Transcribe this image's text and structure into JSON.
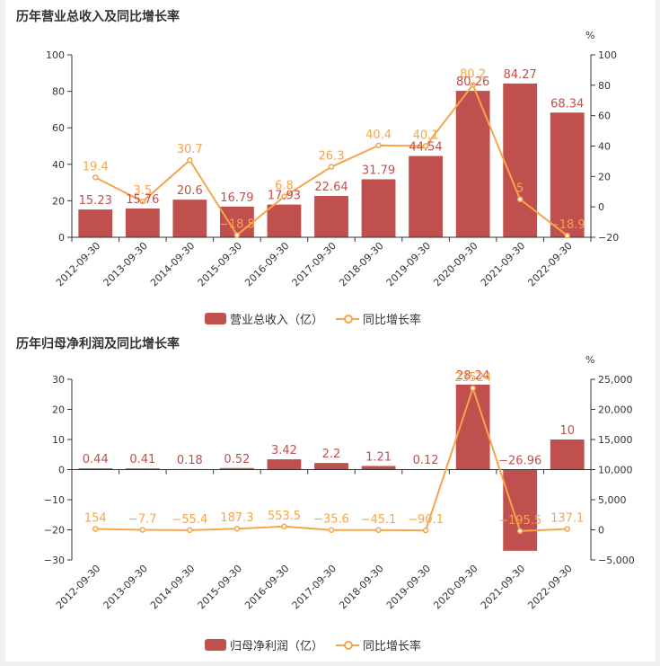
{
  "chart_data": [
    {
      "type": "bar",
      "title": "历年营业总收入及同比增长率",
      "y2_unit": "%",
      "categories": [
        "2012-09-30",
        "2013-09-30",
        "2014-09-30",
        "2015-09-30",
        "2016-09-30",
        "2017-09-30",
        "2018-09-30",
        "2019-09-30",
        "2020-09-30",
        "2021-09-30",
        "2022-09-30"
      ],
      "ylim": [
        0,
        100
      ],
      "y_ticks": [
        "0",
        "20",
        "40",
        "60",
        "80",
        "100"
      ],
      "y2lim": [
        -20,
        100
      ],
      "y2_ticks": [
        "−20",
        "0",
        "20",
        "40",
        "60",
        "80",
        "100"
      ],
      "series": [
        {
          "name": "营业总收入（亿）",
          "type": "bar",
          "axis": "left",
          "color": "#c0504d",
          "values": [
            15.23,
            15.76,
            20.6,
            16.79,
            17.93,
            22.64,
            31.79,
            44.54,
            80.26,
            84.27,
            68.34
          ],
          "labels": [
            "15.23",
            "15.76",
            "20.6",
            "16.79",
            "17.93",
            "22.64",
            "31.79",
            "44.54",
            "80.26",
            "84.27",
            "68.34"
          ]
        },
        {
          "name": "同比增长率",
          "type": "line",
          "axis": "right",
          "color": "#f5a54a",
          "values": [
            19.4,
            3.5,
            30.7,
            -18.5,
            6.8,
            26.3,
            40.4,
            40.1,
            80.2,
            5,
            -18.9
          ],
          "labels": [
            "19.4",
            "3.5",
            "30.7",
            "−18.5",
            "6.8",
            "26.3",
            "40.4",
            "40.1",
            "80.2",
            "5",
            "−18.9"
          ]
        }
      ]
    },
    {
      "type": "bar",
      "title": "历年归母净利润及同比增长率",
      "y2_unit": "%",
      "categories": [
        "2012-09-30",
        "2013-09-30",
        "2014-09-30",
        "2015-09-30",
        "2016-09-30",
        "2017-09-30",
        "2018-09-30",
        "2019-09-30",
        "2020-09-30",
        "2021-09-30",
        "2022-09-30"
      ],
      "ylim": [
        -30,
        30
      ],
      "y_ticks": [
        "−30",
        "−20",
        "−10",
        "0",
        "10",
        "20",
        "30"
      ],
      "y2lim": [
        -5000,
        25000
      ],
      "y2_ticks": [
        "−5,000",
        "0",
        "5,000",
        "10,000",
        "15,000",
        "20,000",
        "25,000"
      ],
      "series": [
        {
          "name": "归母净利润（亿）",
          "type": "bar",
          "axis": "left",
          "color": "#c0504d",
          "values": [
            0.44,
            0.41,
            0.18,
            0.52,
            3.42,
            2.2,
            1.21,
            0.12,
            28.24,
            -26.96,
            10
          ],
          "labels": [
            "0.44",
            "0.41",
            "0.18",
            "0.52",
            "3.42",
            "2.2",
            "1.21",
            "0.12",
            "28.24",
            "−26.96",
            "10"
          ]
        },
        {
          "name": "同比增长率",
          "type": "line",
          "axis": "right",
          "color": "#f5a54a",
          "values": [
            154,
            -7.7,
            -55.4,
            187.3,
            553.5,
            -35.6,
            -45.1,
            -90.1,
            23524,
            -195.5,
            137.1
          ],
          "labels": [
            "154",
            "−7.7",
            "−55.4",
            "187.3",
            "553.5",
            "−35.6",
            "−45.1",
            "−90.1",
            "23524",
            "−195.5",
            "137.1"
          ]
        }
      ]
    }
  ]
}
